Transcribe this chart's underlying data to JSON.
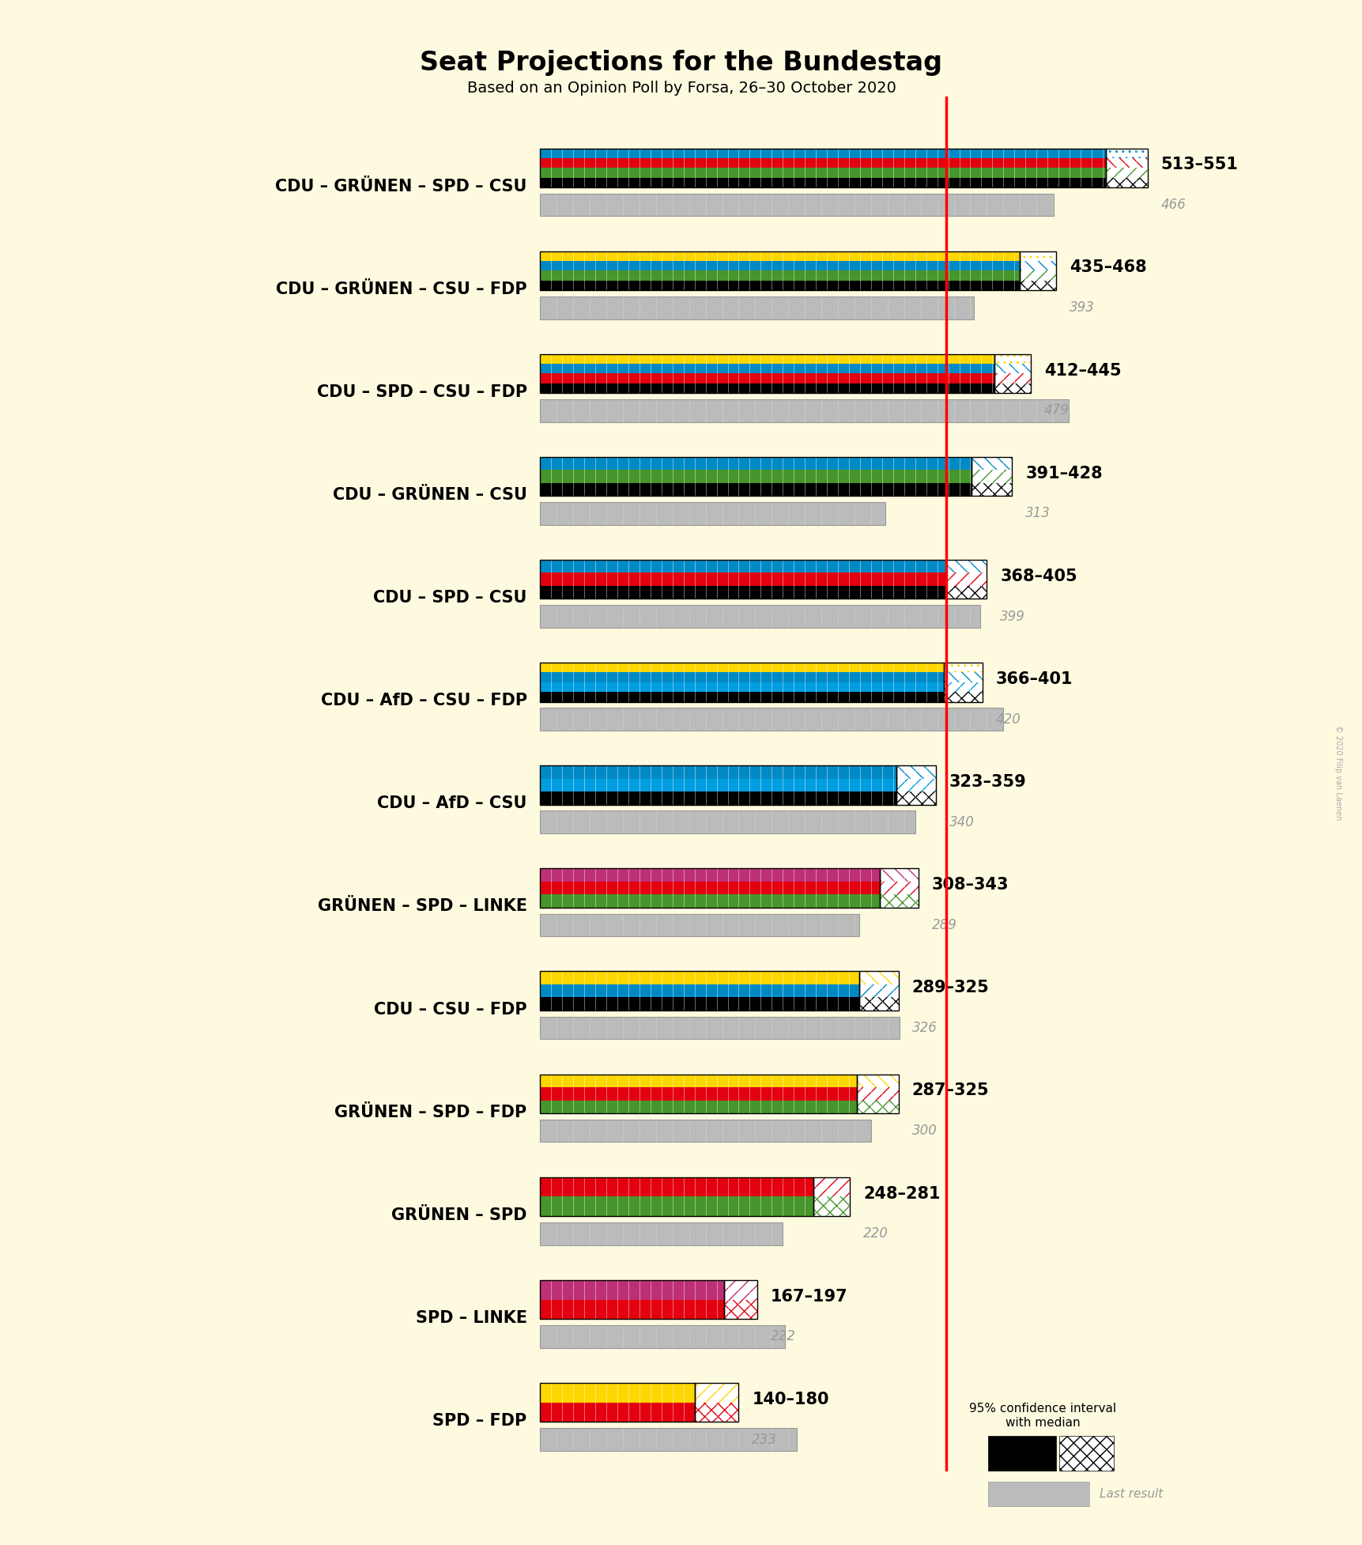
{
  "title": "Seat Projections for the Bundestag",
  "subtitle": "Based on an Opinion Poll by Forsa, 26–30 October 2020",
  "background_color": "#FEFAE0",
  "coalitions": [
    {
      "name": "CDU – GRÜNEN – SPD – CSU",
      "underline": false,
      "ci_low": 513,
      "ci_high": 551,
      "last_result": 466,
      "colors": [
        "#000000",
        "#46962b",
        "#e3000f",
        "#008AC5"
      ]
    },
    {
      "name": "CDU – GRÜNEN – CSU – FDP",
      "underline": false,
      "ci_low": 435,
      "ci_high": 468,
      "last_result": 393,
      "colors": [
        "#000000",
        "#46962b",
        "#008AC5",
        "#FFD700"
      ]
    },
    {
      "name": "CDU – SPD – CSU – FDP",
      "underline": false,
      "ci_low": 412,
      "ci_high": 445,
      "last_result": 479,
      "colors": [
        "#000000",
        "#e3000f",
        "#008AC5",
        "#FFD700"
      ]
    },
    {
      "name": "CDU – GRÜNEN – CSU",
      "underline": false,
      "ci_low": 391,
      "ci_high": 428,
      "last_result": 313,
      "colors": [
        "#000000",
        "#46962b",
        "#008AC5"
      ]
    },
    {
      "name": "CDU – SPD – CSU",
      "underline": true,
      "ci_low": 368,
      "ci_high": 405,
      "last_result": 399,
      "colors": [
        "#000000",
        "#e3000f",
        "#008AC5"
      ]
    },
    {
      "name": "CDU – AfD – CSU – FDP",
      "underline": false,
      "ci_low": 366,
      "ci_high": 401,
      "last_result": 420,
      "colors": [
        "#000000",
        "#009DE0",
        "#008AC5",
        "#FFD700"
      ]
    },
    {
      "name": "CDU – AfD – CSU",
      "underline": false,
      "ci_low": 323,
      "ci_high": 359,
      "last_result": 340,
      "colors": [
        "#000000",
        "#009DE0",
        "#008AC5"
      ]
    },
    {
      "name": "GRÜNEN – SPD – LINKE",
      "underline": false,
      "ci_low": 308,
      "ci_high": 343,
      "last_result": 289,
      "colors": [
        "#46962b",
        "#e3000f",
        "#BE3075"
      ]
    },
    {
      "name": "CDU – CSU – FDP",
      "underline": false,
      "ci_low": 289,
      "ci_high": 325,
      "last_result": 326,
      "colors": [
        "#000000",
        "#008AC5",
        "#FFD700"
      ]
    },
    {
      "name": "GRÜNEN – SPD – FDP",
      "underline": false,
      "ci_low": 287,
      "ci_high": 325,
      "last_result": 300,
      "colors": [
        "#46962b",
        "#e3000f",
        "#FFD700"
      ]
    },
    {
      "name": "GRÜNEN – SPD",
      "underline": false,
      "ci_low": 248,
      "ci_high": 281,
      "last_result": 220,
      "colors": [
        "#46962b",
        "#e3000f"
      ]
    },
    {
      "name": "SPD – LINKE",
      "underline": false,
      "ci_low": 167,
      "ci_high": 197,
      "last_result": 222,
      "colors": [
        "#e3000f",
        "#BE3075"
      ]
    },
    {
      "name": "SPD – FDP",
      "underline": false,
      "ci_low": 140,
      "ci_high": 180,
      "last_result": 233,
      "colors": [
        "#e3000f",
        "#FFD700"
      ]
    }
  ],
  "majority_line": 368,
  "x_max": 600,
  "copyright": "© 2020 Filip van Laenen"
}
